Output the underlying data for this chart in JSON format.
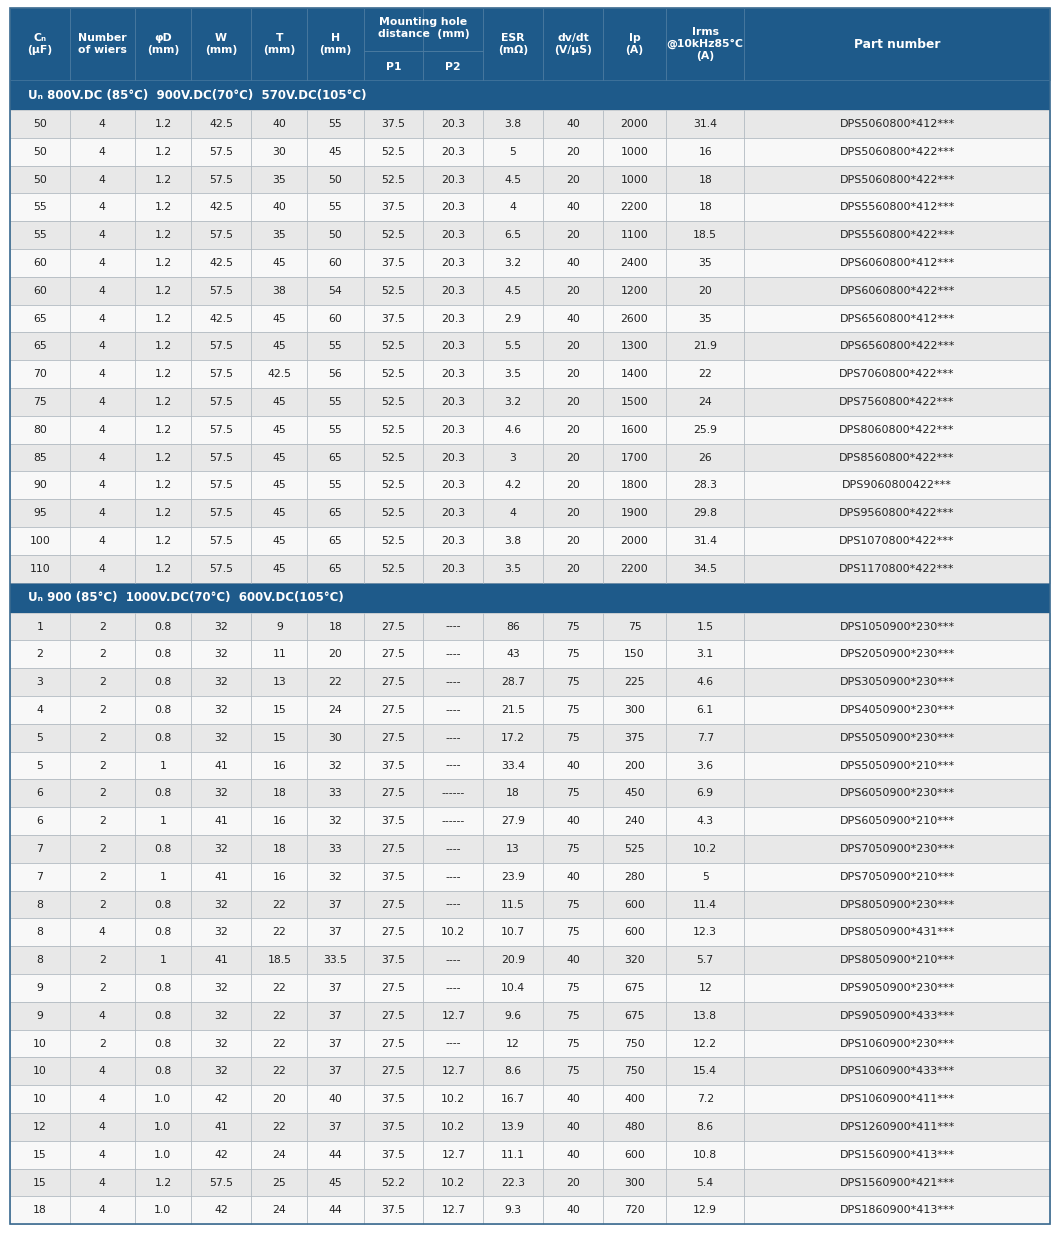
{
  "header_bg": "#1e5a8a",
  "header_text": "#ffffff",
  "section_bg": "#1e5a8a",
  "section_text": "#ffffff",
  "row_bg_light": "#e8e8e8",
  "row_bg_white": "#f8f8f8",
  "cell_text": "#222222",
  "border_color": "#b0b8c0",
  "section1_label": "Uₙ 800V.DC (85°C)  900V.DC(70°C)  570V.DC(105°C)",
  "section2_label": "Uₙ 900 (85°C)  1000V.DC(70°C)  600V.DC(105°C)",
  "rows_section1": [
    [
      "50",
      "4",
      "1.2",
      "42.5",
      "40",
      "55",
      "37.5",
      "20.3",
      "3.8",
      "40",
      "2000",
      "31.4",
      "DPS5060800*412***"
    ],
    [
      "50",
      "4",
      "1.2",
      "57.5",
      "30",
      "45",
      "52.5",
      "20.3",
      "5",
      "20",
      "1000",
      "16",
      "DPS5060800*422***"
    ],
    [
      "50",
      "4",
      "1.2",
      "57.5",
      "35",
      "50",
      "52.5",
      "20.3",
      "4.5",
      "20",
      "1000",
      "18",
      "DPS5060800*422***"
    ],
    [
      "55",
      "4",
      "1.2",
      "42.5",
      "40",
      "55",
      "37.5",
      "20.3",
      "4",
      "40",
      "2200",
      "18",
      "DPS5560800*412***"
    ],
    [
      "55",
      "4",
      "1.2",
      "57.5",
      "35",
      "50",
      "52.5",
      "20.3",
      "6.5",
      "20",
      "1100",
      "18.5",
      "DPS5560800*422***"
    ],
    [
      "60",
      "4",
      "1.2",
      "42.5",
      "45",
      "60",
      "37.5",
      "20.3",
      "3.2",
      "40",
      "2400",
      "35",
      "DPS6060800*412***"
    ],
    [
      "60",
      "4",
      "1.2",
      "57.5",
      "38",
      "54",
      "52.5",
      "20.3",
      "4.5",
      "20",
      "1200",
      "20",
      "DPS6060800*422***"
    ],
    [
      "65",
      "4",
      "1.2",
      "42.5",
      "45",
      "60",
      "37.5",
      "20.3",
      "2.9",
      "40",
      "2600",
      "35",
      "DPS6560800*412***"
    ],
    [
      "65",
      "4",
      "1.2",
      "57.5",
      "45",
      "55",
      "52.5",
      "20.3",
      "5.5",
      "20",
      "1300",
      "21.9",
      "DPS6560800*422***"
    ],
    [
      "70",
      "4",
      "1.2",
      "57.5",
      "42.5",
      "56",
      "52.5",
      "20.3",
      "3.5",
      "20",
      "1400",
      "22",
      "DPS7060800*422***"
    ],
    [
      "75",
      "4",
      "1.2",
      "57.5",
      "45",
      "55",
      "52.5",
      "20.3",
      "3.2",
      "20",
      "1500",
      "24",
      "DPS7560800*422***"
    ],
    [
      "80",
      "4",
      "1.2",
      "57.5",
      "45",
      "55",
      "52.5",
      "20.3",
      "4.6",
      "20",
      "1600",
      "25.9",
      "DPS8060800*422***"
    ],
    [
      "85",
      "4",
      "1.2",
      "57.5",
      "45",
      "65",
      "52.5",
      "20.3",
      "3",
      "20",
      "1700",
      "26",
      "DPS8560800*422***"
    ],
    [
      "90",
      "4",
      "1.2",
      "57.5",
      "45",
      "55",
      "52.5",
      "20.3",
      "4.2",
      "20",
      "1800",
      "28.3",
      "DPS9060800422***"
    ],
    [
      "95",
      "4",
      "1.2",
      "57.5",
      "45",
      "65",
      "52.5",
      "20.3",
      "4",
      "20",
      "1900",
      "29.8",
      "DPS9560800*422***"
    ],
    [
      "100",
      "4",
      "1.2",
      "57.5",
      "45",
      "65",
      "52.5",
      "20.3",
      "3.8",
      "20",
      "2000",
      "31.4",
      "DPS1070800*422***"
    ],
    [
      "110",
      "4",
      "1.2",
      "57.5",
      "45",
      "65",
      "52.5",
      "20.3",
      "3.5",
      "20",
      "2200",
      "34.5",
      "DPS1170800*422***"
    ]
  ],
  "rows_section2": [
    [
      "1",
      "2",
      "0.8",
      "32",
      "9",
      "18",
      "27.5",
      "----",
      "86",
      "75",
      "75",
      "1.5",
      "DPS1050900*230***"
    ],
    [
      "2",
      "2",
      "0.8",
      "32",
      "11",
      "20",
      "27.5",
      "----",
      "43",
      "75",
      "150",
      "3.1",
      "DPS2050900*230***"
    ],
    [
      "3",
      "2",
      "0.8",
      "32",
      "13",
      "22",
      "27.5",
      "----",
      "28.7",
      "75",
      "225",
      "4.6",
      "DPS3050900*230***"
    ],
    [
      "4",
      "2",
      "0.8",
      "32",
      "15",
      "24",
      "27.5",
      "----",
      "21.5",
      "75",
      "300",
      "6.1",
      "DPS4050900*230***"
    ],
    [
      "5",
      "2",
      "0.8",
      "32",
      "15",
      "30",
      "27.5",
      "----",
      "17.2",
      "75",
      "375",
      "7.7",
      "DPS5050900*230***"
    ],
    [
      "5",
      "2",
      "1",
      "41",
      "16",
      "32",
      "37.5",
      "----",
      "33.4",
      "40",
      "200",
      "3.6",
      "DPS5050900*210***"
    ],
    [
      "6",
      "2",
      "0.8",
      "32",
      "18",
      "33",
      "27.5",
      "------",
      "18",
      "75",
      "450",
      "6.9",
      "DPS6050900*230***"
    ],
    [
      "6",
      "2",
      "1",
      "41",
      "16",
      "32",
      "37.5",
      "------",
      "27.9",
      "40",
      "240",
      "4.3",
      "DPS6050900*210***"
    ],
    [
      "7",
      "2",
      "0.8",
      "32",
      "18",
      "33",
      "27.5",
      "----",
      "13",
      "75",
      "525",
      "10.2",
      "DPS7050900*230***"
    ],
    [
      "7",
      "2",
      "1",
      "41",
      "16",
      "32",
      "37.5",
      "----",
      "23.9",
      "40",
      "280",
      "5",
      "DPS7050900*210***"
    ],
    [
      "8",
      "2",
      "0.8",
      "32",
      "22",
      "37",
      "27.5",
      "----",
      "11.5",
      "75",
      "600",
      "11.4",
      "DPS8050900*230***"
    ],
    [
      "8",
      "4",
      "0.8",
      "32",
      "22",
      "37",
      "27.5",
      "10.2",
      "10.7",
      "75",
      "600",
      "12.3",
      "DPS8050900*431***"
    ],
    [
      "8",
      "2",
      "1",
      "41",
      "18.5",
      "33.5",
      "37.5",
      "----",
      "20.9",
      "40",
      "320",
      "5.7",
      "DPS8050900*210***"
    ],
    [
      "9",
      "2",
      "0.8",
      "32",
      "22",
      "37",
      "27.5",
      "----",
      "10.4",
      "75",
      "675",
      "12",
      "DPS9050900*230***"
    ],
    [
      "9",
      "4",
      "0.8",
      "32",
      "22",
      "37",
      "27.5",
      "12.7",
      "9.6",
      "75",
      "675",
      "13.8",
      "DPS9050900*433***"
    ],
    [
      "10",
      "2",
      "0.8",
      "32",
      "22",
      "37",
      "27.5",
      "----",
      "12",
      "75",
      "750",
      "12.2",
      "DPS1060900*230***"
    ],
    [
      "10",
      "4",
      "0.8",
      "32",
      "22",
      "37",
      "27.5",
      "12.7",
      "8.6",
      "75",
      "750",
      "15.4",
      "DPS1060900*433***"
    ],
    [
      "10",
      "4",
      "1.0",
      "42",
      "20",
      "40",
      "37.5",
      "10.2",
      "16.7",
      "40",
      "400",
      "7.2",
      "DPS1060900*411***"
    ],
    [
      "12",
      "4",
      "1.0",
      "41",
      "22",
      "37",
      "37.5",
      "10.2",
      "13.9",
      "40",
      "480",
      "8.6",
      "DPS1260900*411***"
    ],
    [
      "15",
      "4",
      "1.0",
      "42",
      "24",
      "44",
      "37.5",
      "12.7",
      "11.1",
      "40",
      "600",
      "10.8",
      "DPS1560900*413***"
    ],
    [
      "15",
      "4",
      "1.2",
      "57.5",
      "25",
      "45",
      "52.2",
      "10.2",
      "22.3",
      "20",
      "300",
      "5.4",
      "DPS1560900*421***"
    ],
    [
      "18",
      "4",
      "1.0",
      "42",
      "24",
      "44",
      "37.5",
      "12.7",
      "9.3",
      "40",
      "720",
      "12.9",
      "DPS1860900*413***"
    ]
  ]
}
